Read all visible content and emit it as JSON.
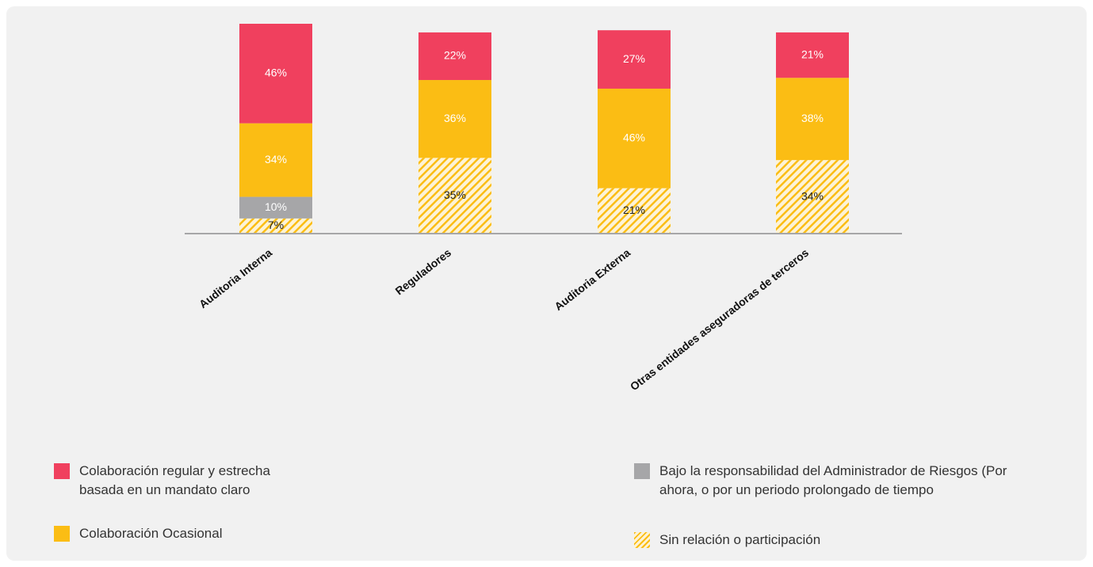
{
  "chart_data": {
    "type": "stacked_bar",
    "categories": [
      "Auditoria Interna",
      "Reguladores",
      "Auditoria Externa",
      "Otras entidades aseguradoras de terceros"
    ],
    "series": [
      {
        "name": "Sin relación o participación",
        "color": "#fbbd14",
        "hatch": true,
        "values": [
          7,
          35,
          21,
          34
        ]
      },
      {
        "name": "Bajo la responsabilidad del Administrador de Riesgos (Por ahora, o por un periodo prolongado de tiempo",
        "color": "#a6a6a8",
        "values": [
          10,
          null,
          null,
          null
        ]
      },
      {
        "name": "Colaboración Ocasional",
        "color": "#fbbd14",
        "values": [
          34,
          36,
          46,
          38
        ]
      },
      {
        "name": "Colaboración regular y estrecha basada en un mandato claro",
        "color": "#f0405e",
        "values": [
          46,
          22,
          27,
          21
        ]
      }
    ],
    "value_labels": [
      [
        "7%",
        "35%",
        "21%",
        "34%"
      ],
      [
        "10%",
        null,
        null,
        null
      ],
      [
        "34%",
        "36%",
        "46%",
        "38%"
      ],
      [
        "46%",
        "22%",
        "27%",
        "21%"
      ]
    ],
    "ylim": [
      0,
      97
    ]
  }
}
